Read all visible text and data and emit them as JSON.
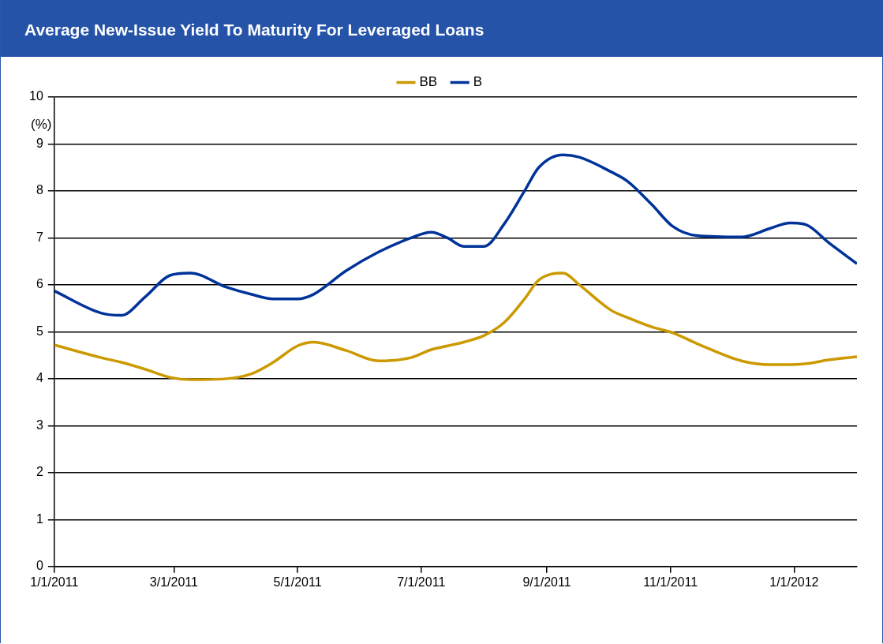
{
  "chart_data": {
    "type": "line",
    "title": "Average New-Issue Yield To Maturity For Leveraged Loans",
    "ylabel": "(%)",
    "x": [
      "2011-01-01",
      "2011-01-24",
      "2011-02-03",
      "2011-02-15",
      "2011-02-27",
      "2011-03-09",
      "2011-03-27",
      "2011-04-08",
      "2011-04-19",
      "2011-05-01",
      "2011-05-09",
      "2011-05-25",
      "2011-06-10",
      "2011-06-26",
      "2011-07-06",
      "2011-07-14",
      "2011-07-22",
      "2011-08-01",
      "2011-08-11",
      "2011-08-21",
      "2011-08-28",
      "2011-09-09",
      "2011-09-17",
      "2011-10-03",
      "2011-10-11",
      "2011-10-23",
      "2011-11-02",
      "2011-11-14",
      "2011-12-06",
      "2011-12-20",
      "2011-12-30",
      "2012-01-07",
      "2012-01-18",
      "2012-02-01"
    ],
    "series": [
      {
        "name": "BB",
        "color": "#cc9900",
        "values": [
          4.72,
          4.45,
          4.35,
          4.2,
          4.03,
          3.98,
          4.0,
          4.1,
          4.35,
          4.7,
          4.78,
          4.6,
          4.38,
          4.45,
          4.62,
          4.7,
          4.78,
          4.92,
          5.2,
          5.7,
          6.1,
          6.25,
          6.0,
          5.45,
          5.3,
          5.1,
          4.98,
          4.75,
          4.38,
          4.3,
          4.3,
          4.32,
          4.4,
          4.47
        ]
      },
      {
        "name": "B",
        "color": "#003399",
        "values": [
          5.87,
          5.4,
          5.35,
          5.75,
          6.2,
          6.25,
          5.95,
          5.8,
          5.7,
          5.7,
          5.8,
          6.3,
          6.7,
          7.0,
          7.12,
          7.0,
          6.82,
          6.82,
          7.3,
          8.0,
          8.5,
          8.77,
          8.72,
          8.4,
          8.2,
          7.7,
          7.25,
          7.05,
          7.02,
          7.2,
          7.32,
          7.28,
          6.9,
          6.45
        ]
      }
    ],
    "xlim": [
      "2011-01-01",
      "2012-02-01"
    ],
    "xticks": [
      {
        "value": "2011-01-01",
        "label": "1/1/2011"
      },
      {
        "value": "2011-03-01",
        "label": "3/1/2011"
      },
      {
        "value": "2011-05-01",
        "label": "5/1/2011"
      },
      {
        "value": "2011-07-01",
        "label": "7/1/2011"
      },
      {
        "value": "2011-09-01",
        "label": "9/1/2011"
      },
      {
        "value": "2011-11-01",
        "label": "11/1/2011"
      },
      {
        "value": "2012-01-01",
        "label": "1/1/2012"
      }
    ],
    "ylim": [
      0,
      10
    ],
    "yticks": [
      0,
      1,
      2,
      3,
      4,
      5,
      6,
      7,
      8,
      9,
      10
    ],
    "grid": "y",
    "legend": "top",
    "marker": "none",
    "line_style": "solid"
  }
}
